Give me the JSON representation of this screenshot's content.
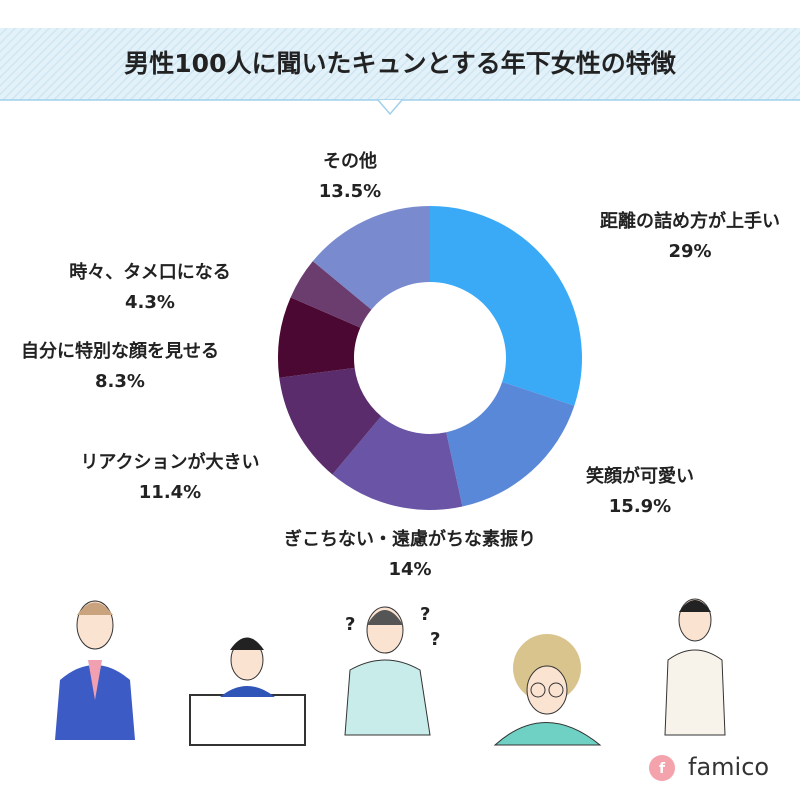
{
  "chart_data": {
    "type": "donut",
    "title": "男性100人に聞いたキュンとする年下女性の特徴",
    "categories": [
      "距離の詰め方が上手い",
      "笑顔が可愛い",
      "ぎこちない・遠慮がちな素振り",
      "リアクションが大きい",
      "自分に特別な顔を見せる",
      "時々、タメ口になる",
      "その他"
    ],
    "values": [
      29,
      15.9,
      14,
      11.4,
      8.3,
      4.3,
      13.5
    ],
    "value_labels": [
      "29%",
      "15.9%",
      "14%",
      "11.4%",
      "8.3%",
      "4.3%",
      "13.5%"
    ],
    "colors": [
      "#3aaaf7",
      "#5a88d8",
      "#6954a6",
      "#5b2c6c",
      "#4b0833",
      "#6a3d6e",
      "#7a8ace"
    ]
  },
  "brand": "famico"
}
